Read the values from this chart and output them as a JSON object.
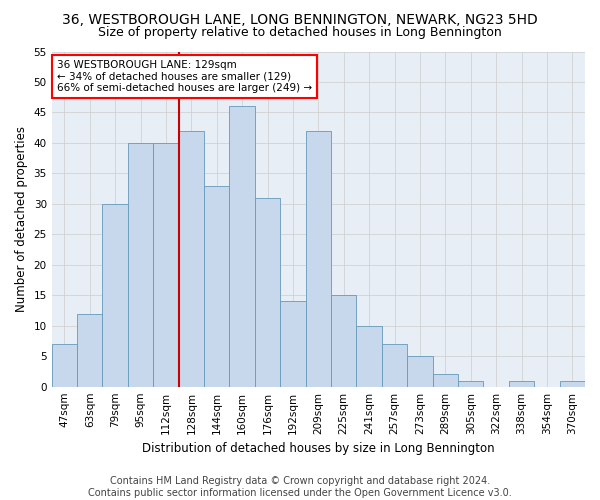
{
  "title": "36, WESTBOROUGH LANE, LONG BENNINGTON, NEWARK, NG23 5HD",
  "subtitle": "Size of property relative to detached houses in Long Bennington",
  "xlabel": "Distribution of detached houses by size in Long Bennington",
  "ylabel": "Number of detached properties",
  "footer_line1": "Contains HM Land Registry data © Crown copyright and database right 2024.",
  "footer_line2": "Contains public sector information licensed under the Open Government Licence v3.0.",
  "bins": [
    "47sqm",
    "63sqm",
    "79sqm",
    "95sqm",
    "112sqm",
    "128sqm",
    "144sqm",
    "160sqm",
    "176sqm",
    "192sqm",
    "209sqm",
    "225sqm",
    "241sqm",
    "257sqm",
    "273sqm",
    "289sqm",
    "305sqm",
    "322sqm",
    "338sqm",
    "354sqm",
    "370sqm"
  ],
  "values": [
    7,
    12,
    30,
    40,
    40,
    42,
    33,
    46,
    31,
    14,
    42,
    15,
    10,
    7,
    5,
    2,
    1,
    0,
    1,
    0,
    1
  ],
  "bar_color": "#c8d8ec",
  "bar_edge_color": "#6699bb",
  "grid_color": "#cccccc",
  "bg_color": "#e8eef5",
  "ylim": [
    0,
    55
  ],
  "title_fontsize": 10,
  "subtitle_fontsize": 9,
  "axis_label_fontsize": 8.5,
  "tick_fontsize": 7.5,
  "footer_fontsize": 7,
  "annotation_line1": "36 WESTBOROUGH LANE: 129sqm",
  "annotation_line2": "← 34% of detached houses are smaller (129)",
  "annotation_line3": "66% of semi-detached houses are larger (249) →",
  "annotation_fontsize": 7.5,
  "line_color": "#cc0000",
  "line_x_index": 5.0
}
